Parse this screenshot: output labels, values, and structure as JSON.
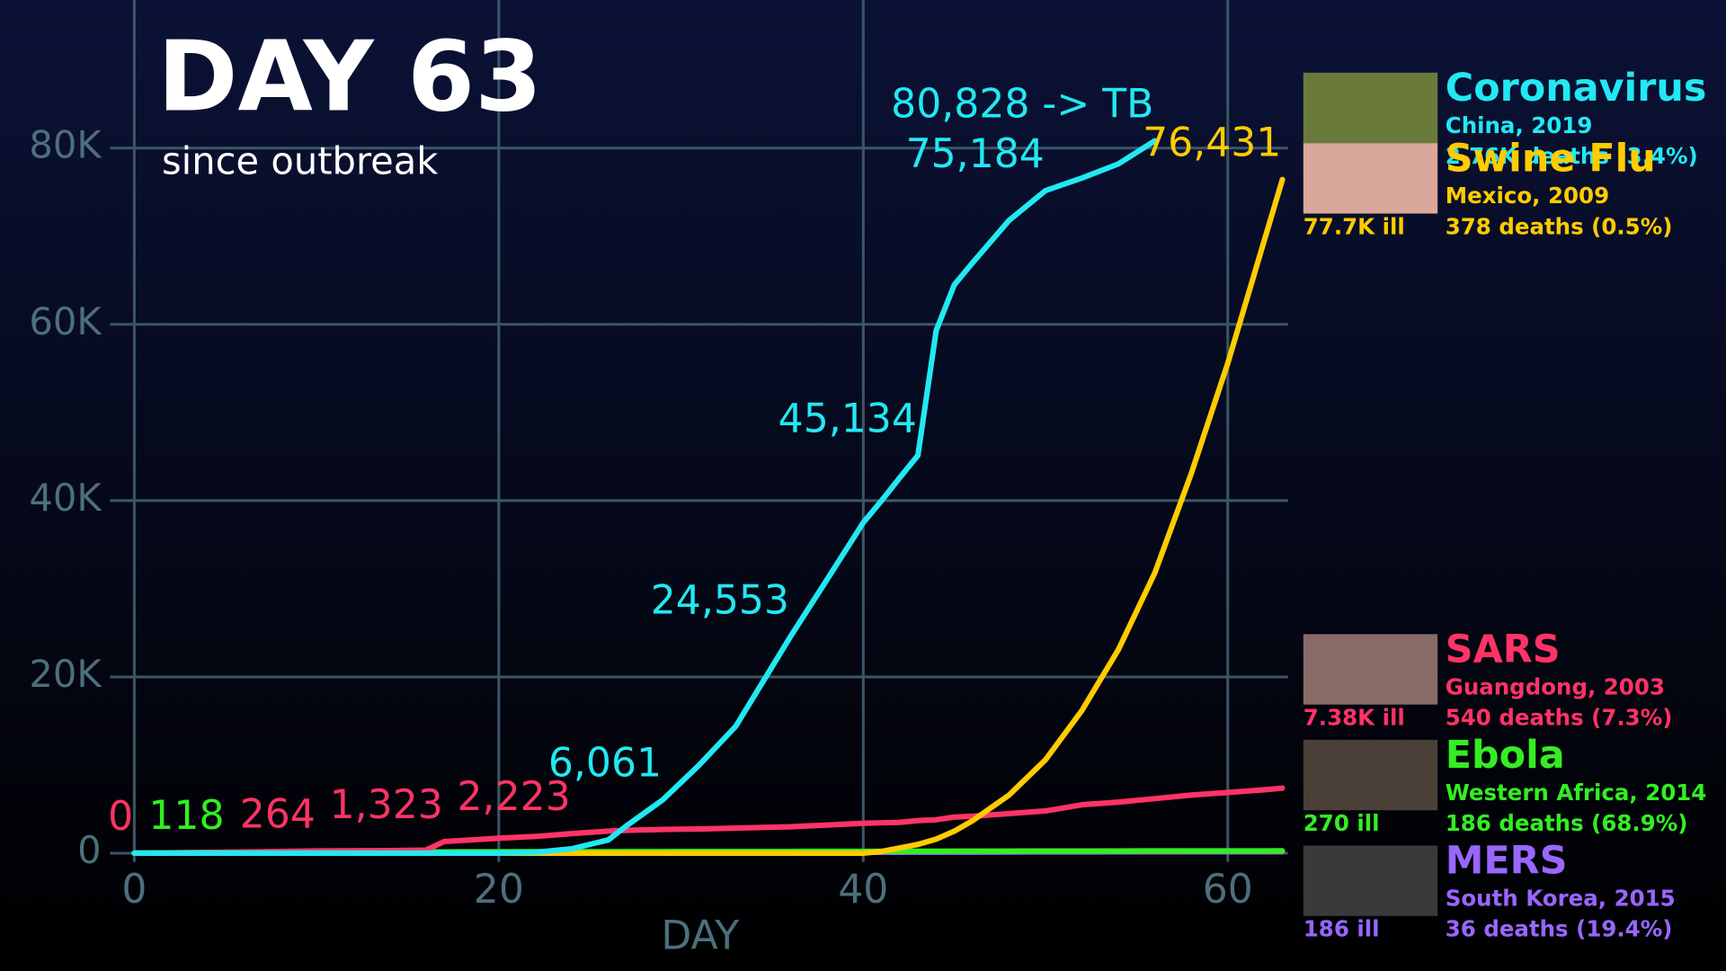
{
  "chart_data": {
    "type": "line",
    "title": "DAY 63",
    "subtitle": "since outbreak",
    "x_label": "DAY",
    "x": [
      0,
      5,
      10,
      14,
      16,
      17,
      20,
      22,
      24,
      26,
      27,
      29,
      31,
      33,
      36,
      38,
      40,
      41,
      42,
      43,
      44,
      45,
      46,
      48,
      50,
      52,
      54,
      56,
      58,
      60,
      62,
      63
    ],
    "xlim": [
      0,
      63.3
    ],
    "xticks": [
      0,
      20,
      40,
      60
    ],
    "ylim": [
      0,
      96800
    ],
    "yticks": [
      0,
      {
        "value": 20000,
        "label": "20K"
      },
      {
        "value": 40000,
        "label": "40K"
      },
      {
        "value": 60000,
        "label": "60K"
      },
      {
        "value": 80000,
        "label": "80K"
      }
    ],
    "grid": true,
    "series": [
      {
        "name": "Coronavirus",
        "color": "#22e8f2",
        "place": "China, 2019",
        "deaths": "2.76K deaths (3.4%)",
        "values": [
          0,
          0,
          0,
          0,
          0,
          0,
          0,
          100,
          500,
          1500,
          3100,
          6061,
          10000,
          14400,
          24553,
          31000,
          37500,
          40000,
          42600,
          45134,
          59300,
          64500,
          67000,
          71800,
          75184,
          76600,
          78200,
          80828,
          null,
          null,
          null,
          null
        ],
        "value_labels": [
          null,
          null,
          null,
          null,
          null,
          null,
          null,
          null,
          null,
          null,
          null,
          "6,061",
          null,
          null,
          "24,553",
          null,
          null,
          null,
          null,
          "45,134",
          null,
          null,
          null,
          null,
          "75,184",
          null,
          null,
          "80,828 -> TB",
          null,
          null,
          null,
          null
        ]
      },
      {
        "name": "Swine Flu",
        "color": "#ffcc00",
        "place": "Mexico, 2009",
        "ill": "77.7K ill",
        "deaths": "378 deaths (0.5%)",
        "values": [
          0,
          0,
          0,
          0,
          0,
          0,
          0,
          0,
          0,
          0,
          0,
          0,
          0,
          0,
          0,
          0,
          0,
          200,
          600,
          1000,
          1600,
          2500,
          3700,
          6600,
          10600,
          16200,
          23100,
          31800,
          43100,
          55600,
          69500,
          76431
        ],
        "value_labels": [
          null,
          null,
          null,
          null,
          null,
          null,
          null,
          null,
          null,
          null,
          null,
          null,
          null,
          null,
          null,
          null,
          null,
          null,
          null,
          null,
          null,
          null,
          null,
          null,
          null,
          null,
          null,
          null,
          null,
          null,
          null,
          "76,431"
        ]
      },
      {
        "name": "SARS",
        "color": "#ff3366",
        "place": "Guangdong, 2003",
        "ill": "7.38K ill",
        "deaths": "540 deaths (7.3%)",
        "values": [
          0,
          100,
          264,
          300,
          350,
          1323,
          1700,
          1900,
          2223,
          2500,
          2600,
          2700,
          2750,
          2850,
          3000,
          3200,
          3400,
          3450,
          3500,
          3700,
          3800,
          4100,
          4200,
          4500,
          4800,
          5500,
          5800,
          6200,
          6600,
          6900,
          7200,
          7380
        ],
        "value_labels": [
          "0",
          null,
          "264",
          null,
          null,
          "1,323",
          null,
          null,
          "2,223",
          null,
          null,
          null,
          null,
          null,
          null,
          null,
          null,
          null,
          null,
          null,
          null,
          null,
          null,
          null,
          null,
          null,
          null,
          null,
          null,
          null,
          null,
          null
        ]
      },
      {
        "name": "Ebola",
        "color": "#33ee22",
        "place": "Western Africa, 2014",
        "ill": "270 ill",
        "deaths": "186 deaths (68.9%)",
        "values": [
          0,
          118,
          130,
          140,
          150,
          155,
          160,
          170,
          175,
          180,
          185,
          190,
          195,
          200,
          205,
          210,
          215,
          218,
          220,
          225,
          230,
          232,
          235,
          240,
          245,
          250,
          255,
          258,
          262,
          265,
          268,
          270
        ],
        "value_labels": [
          null,
          "118",
          null,
          null,
          null,
          null,
          null,
          null,
          null,
          null,
          null,
          null,
          null,
          null,
          null,
          null,
          null,
          null,
          null,
          null,
          null,
          null,
          null,
          null,
          null,
          null,
          null,
          null,
          null,
          null,
          null,
          null
        ]
      },
      {
        "name": "MERS",
        "color": "#9966ff",
        "place": "South Korea, 2015",
        "ill": "186 ill",
        "deaths": "36 deaths (19.4%)",
        "values": [
          0,
          10,
          20,
          30,
          40,
          42,
          50,
          55,
          60,
          65,
          68,
          75,
          80,
          90,
          100,
          105,
          110,
          115,
          118,
          120,
          125,
          128,
          130,
          140,
          145,
          150,
          160,
          165,
          170,
          175,
          180,
          186
        ]
      }
    ]
  }
}
